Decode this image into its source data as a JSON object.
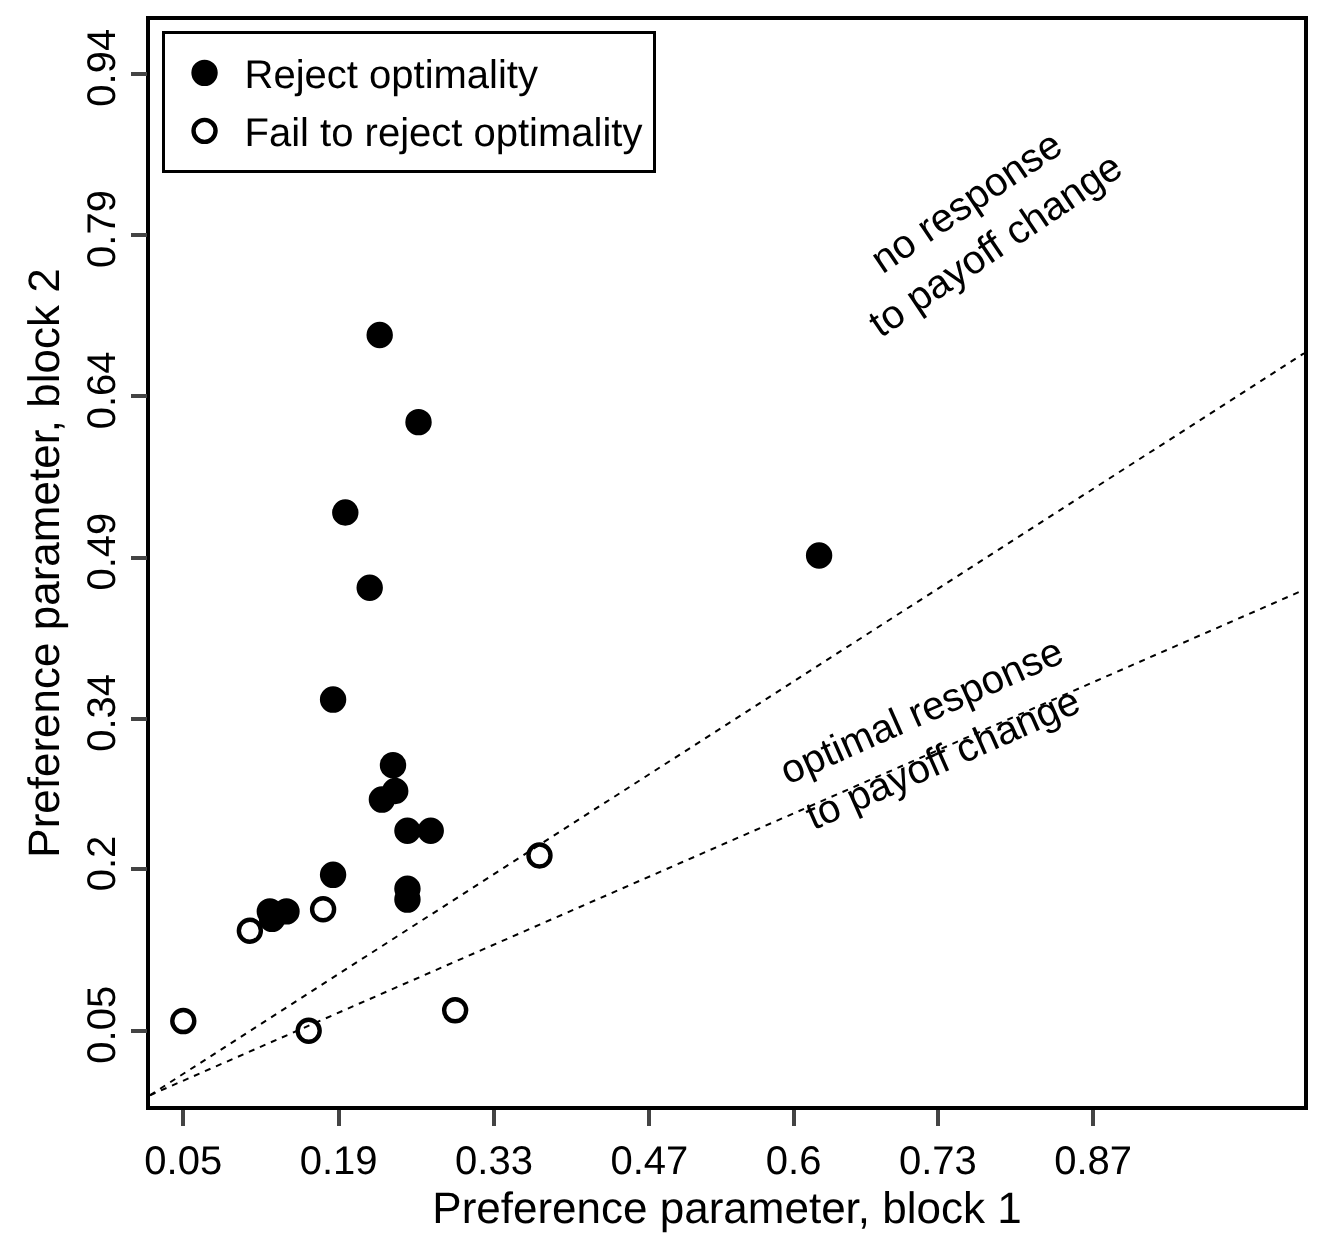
{
  "chart_data": {
    "type": "scatter",
    "xlabel": "Preference parameter, block 1",
    "ylabel": "Preference parameter, block 2",
    "xlim": [
      0.02,
      1.06
    ],
    "ylim": [
      -0.02,
      0.99
    ],
    "xticks": [
      0.05,
      0.19,
      0.33,
      0.47,
      0.6,
      0.73,
      0.87
    ],
    "yticks": [
      0.05,
      0.2,
      0.34,
      0.49,
      0.64,
      0.79,
      0.94
    ],
    "legend": "top left",
    "marker": "circle",
    "series": [
      {
        "name": "Reject optimality",
        "color": "#000000",
        "x": [
          0.227,
          0.262,
          0.196,
          0.218,
          0.185,
          0.239,
          0.241,
          0.229,
          0.252,
          0.273,
          0.185,
          0.252,
          0.252,
          0.128,
          0.143,
          0.13,
          0.623
        ],
        "values": [
          0.697,
          0.616,
          0.532,
          0.462,
          0.358,
          0.297,
          0.273,
          0.265,
          0.236,
          0.236,
          0.195,
          0.182,
          0.172,
          0.161,
          0.161,
          0.154,
          0.492
        ]
      },
      {
        "name": "Fail to reject optimality",
        "color": "#000000",
        "x": [
          0.11,
          0.176,
          0.371,
          0.05,
          0.163,
          0.295
        ],
        "values": [
          0.143,
          0.163,
          0.213,
          0.059,
          0.05,
          0.069
        ]
      },
      {
        "type": "line",
        "marker": "none",
        "line_style": "dotted",
        "color": "#000000",
        "x": [
          0.02,
          1.06
        ],
        "values": [
          -0.01,
          0.68
        ]
      },
      {
        "type": "line",
        "marker": "none",
        "line_style": "dotted",
        "color": "#000000",
        "x": [
          0.02,
          1.06
        ],
        "values": [
          -0.01,
          0.46
        ]
      }
    ],
    "annotations": [
      "no response\nto payoff change",
      "optimal response\nto payoff change"
    ]
  }
}
